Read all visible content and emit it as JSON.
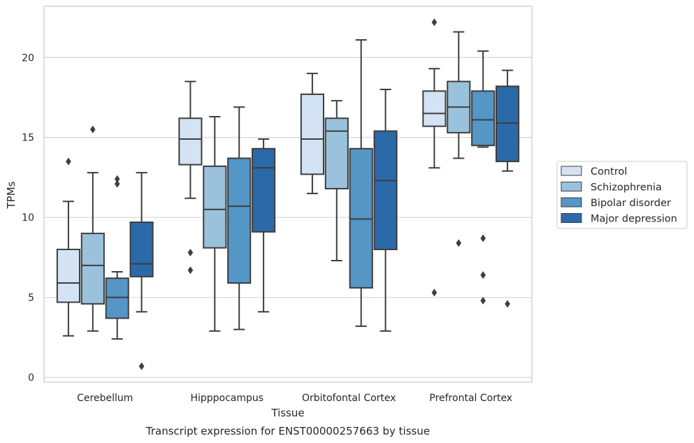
{
  "chart_data": {
    "type": "box",
    "title": "",
    "caption": "Transcript expression for ENST00000257663 by tissue",
    "xlabel": "Tissue",
    "ylabel": "TPMs",
    "ylim": [
      -0.3,
      23.2
    ],
    "yticks": [
      0,
      5,
      10,
      15,
      20
    ],
    "grid": "horizontal",
    "legend_position": "outside-right",
    "categories": [
      "Cerebellum",
      "Hipppocampus",
      "Orbitofontal Cortex",
      "Prefrontal Cortex"
    ],
    "series": [
      {
        "name": "Control",
        "color": "#d4e3f3",
        "boxes": [
          {
            "whisker_low": 2.6,
            "q1": 4.7,
            "median": 5.9,
            "q3": 8.0,
            "whisker_high": 11.0,
            "outliers": [
              13.5
            ]
          },
          {
            "whisker_low": 11.2,
            "q1": 13.3,
            "median": 14.9,
            "q3": 16.2,
            "whisker_high": 18.5,
            "outliers": [
              7.8,
              6.7
            ]
          },
          {
            "whisker_low": 11.5,
            "q1": 12.7,
            "median": 14.9,
            "q3": 17.7,
            "whisker_high": 19.0,
            "outliers": []
          },
          {
            "whisker_low": 13.1,
            "q1": 15.7,
            "median": 16.5,
            "q3": 17.9,
            "whisker_high": 19.3,
            "outliers": [
              22.2,
              5.3
            ]
          }
        ]
      },
      {
        "name": "Schizophrenia",
        "color": "#9bc2dc",
        "boxes": [
          {
            "whisker_low": 2.9,
            "q1": 4.6,
            "median": 7.0,
            "q3": 9.0,
            "whisker_high": 12.8,
            "outliers": [
              15.5
            ]
          },
          {
            "whisker_low": 2.9,
            "q1": 8.1,
            "median": 10.5,
            "q3": 13.2,
            "whisker_high": 16.3,
            "outliers": []
          },
          {
            "whisker_low": 7.3,
            "q1": 11.8,
            "median": 15.4,
            "q3": 16.2,
            "whisker_high": 17.3,
            "outliers": []
          },
          {
            "whisker_low": 13.7,
            "q1": 15.3,
            "median": 16.9,
            "q3": 18.5,
            "whisker_high": 21.6,
            "outliers": [
              8.4
            ]
          }
        ]
      },
      {
        "name": "Bipolar disorder",
        "color": "#5496c5",
        "boxes": [
          {
            "whisker_low": 2.4,
            "q1": 3.7,
            "median": 5.0,
            "q3": 6.2,
            "whisker_high": 6.6,
            "outliers": [
              12.4,
              12.1
            ]
          },
          {
            "whisker_low": 3.0,
            "q1": 5.9,
            "median": 10.7,
            "q3": 13.7,
            "whisker_high": 16.9,
            "outliers": []
          },
          {
            "whisker_low": 3.2,
            "q1": 5.6,
            "median": 9.9,
            "q3": 14.3,
            "whisker_high": 21.1,
            "outliers": []
          },
          {
            "whisker_low": 14.4,
            "q1": 14.5,
            "median": 16.1,
            "q3": 17.9,
            "whisker_high": 20.4,
            "outliers": [
              8.7,
              6.4,
              4.8
            ]
          }
        ]
      },
      {
        "name": "Major depression",
        "color": "#2b69a8",
        "boxes": [
          {
            "whisker_low": 4.1,
            "q1": 6.3,
            "median": 7.1,
            "q3": 9.7,
            "whisker_high": 12.8,
            "outliers": [
              0.7
            ]
          },
          {
            "whisker_low": 4.1,
            "q1": 9.1,
            "median": 13.1,
            "q3": 14.3,
            "whisker_high": 14.9,
            "outliers": []
          },
          {
            "whisker_low": 2.9,
            "q1": 8.0,
            "median": 12.3,
            "q3": 15.4,
            "whisker_high": 18.0,
            "outliers": []
          },
          {
            "whisker_low": 12.9,
            "q1": 13.5,
            "median": 15.9,
            "q3": 18.2,
            "whisker_high": 19.2,
            "outliers": [
              4.6
            ]
          }
        ]
      }
    ]
  }
}
